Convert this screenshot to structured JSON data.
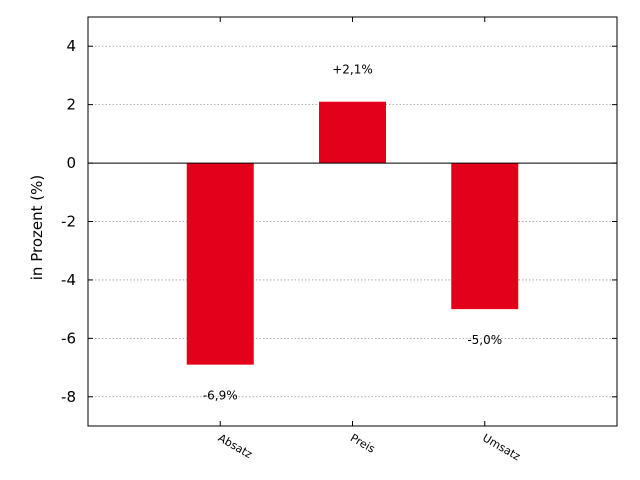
{
  "chart_data": {
    "type": "bar",
    "categories": [
      "Absatz",
      "Preis",
      "Umsatz"
    ],
    "values": [
      -6.9,
      2.1,
      -5.0
    ],
    "data_labels": [
      "-6,9%",
      "+2,1%",
      "-5,0%"
    ],
    "title": "",
    "xlabel": "",
    "ylabel": "in Prozent (%)",
    "ylim": [
      -9,
      5
    ],
    "yticks": [
      4,
      2,
      0,
      -2,
      -4,
      -6,
      -8
    ],
    "ytick_labels": [
      "4",
      "2",
      "0",
      "-2",
      "-4",
      "-6",
      "-8"
    ],
    "grid": true,
    "bar_color": "#e2001a"
  }
}
